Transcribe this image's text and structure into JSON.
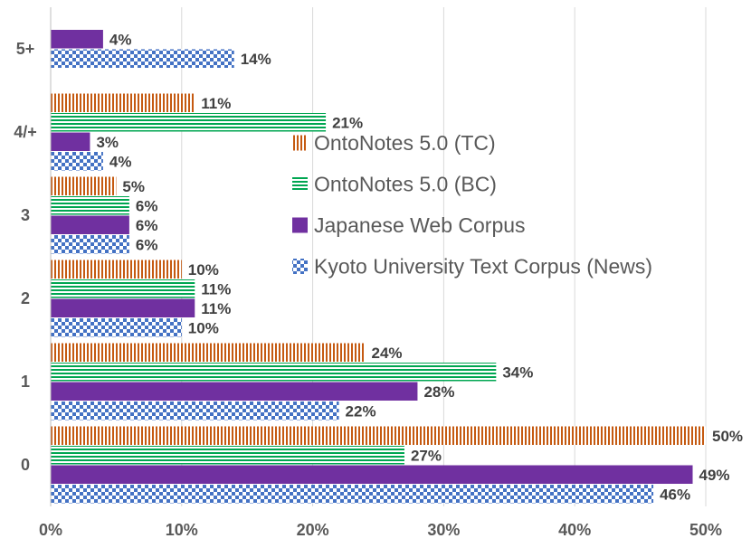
{
  "chart_data": {
    "type": "bar",
    "orientation": "horizontal",
    "categories": [
      "0",
      "1",
      "2",
      "3",
      "4/+",
      "5+"
    ],
    "xlim": [
      0,
      50
    ],
    "xticks": [
      0,
      10,
      20,
      30,
      40,
      50
    ],
    "xtick_labels": [
      "0%",
      "10%",
      "20%",
      "30%",
      "40%",
      "50%"
    ],
    "grid": true,
    "legend_position": "center-right",
    "series": [
      {
        "name": "OntoNotes 5.0 (TC)",
        "pattern": "vertical-stripes",
        "color": "#C55A11",
        "values": [
          50,
          24,
          10,
          5,
          11,
          null
        ],
        "labels": [
          "50%",
          "24%",
          "10%",
          "5%",
          "11%",
          null
        ]
      },
      {
        "name": "OntoNotes 5.0 (BC)",
        "pattern": "horizontal-stripes",
        "color": "#00A651",
        "values": [
          27,
          34,
          11,
          6,
          21,
          null
        ],
        "labels": [
          "27%",
          "34%",
          "11%",
          "6%",
          "21%",
          null
        ]
      },
      {
        "name": "Japanese Web Corpus",
        "pattern": "solid",
        "color": "#7030A0",
        "values": [
          49,
          28,
          11,
          6,
          3,
          4
        ],
        "labels": [
          "49%",
          "28%",
          "11%",
          "6%",
          "3%",
          "4%"
        ]
      },
      {
        "name": "Kyoto University Text Corpus (News)",
        "pattern": "checker",
        "color": "#4472C4",
        "values": [
          46,
          22,
          10,
          6,
          4,
          14
        ],
        "labels": [
          "46%",
          "22%",
          "10%",
          "6%",
          "4%",
          "14%"
        ]
      }
    ],
    "legend_order": [
      0,
      1,
      2,
      3
    ]
  }
}
